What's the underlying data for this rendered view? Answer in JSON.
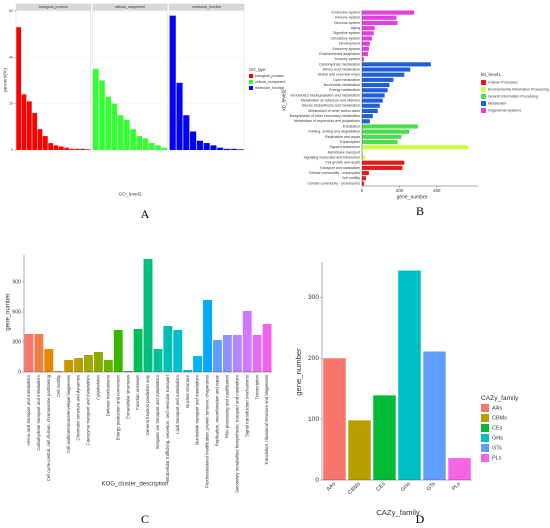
{
  "chart_data": [
    {
      "type": "facet_bar",
      "label": "A",
      "xlabel": "GO_level2",
      "ylabel": "percent(%)",
      "legend_title": "GO_type",
      "ylim": [
        0,
        60
      ],
      "yticks": [
        0,
        20,
        40,
        60
      ],
      "facets": [
        {
          "name": "biological_process",
          "color": "#ff0000",
          "categories": [
            null,
            null,
            null,
            null,
            null,
            null,
            null,
            null,
            null,
            null,
            null,
            null,
            null,
            null
          ],
          "values": [
            53,
            24,
            21,
            16,
            9,
            6,
            3,
            2,
            1.5,
            1,
            0.5,
            0.5,
            0.5,
            0.3
          ]
        },
        {
          "name": "cellular_component",
          "color": "#33ff33",
          "categories": [
            null,
            null,
            null,
            null,
            null,
            null,
            null,
            null,
            null,
            null,
            null,
            null
          ],
          "values": [
            35,
            30,
            23,
            20,
            15,
            13,
            9,
            6,
            5,
            3,
            2,
            1
          ]
        },
        {
          "name": "molecular_function",
          "color": "#0000ff",
          "categories": [
            null,
            null,
            null,
            null,
            null,
            null,
            null,
            null,
            null,
            null,
            null
          ],
          "values": [
            58,
            29,
            15,
            8,
            4,
            3,
            2,
            1,
            0.5,
            0.5,
            0.3
          ]
        }
      ]
    },
    {
      "type": "hbar",
      "label": "B",
      "xlabel": "gene_number",
      "ylabel": "kb_level2",
      "legend_title": "kb_level1",
      "xlim": [
        0,
        620
      ],
      "xticks": [
        0,
        200,
        400
      ],
      "categories": [
        "Endocrine system",
        "Immune system",
        "Nervous system",
        "Aging",
        "Digestive system",
        "Circulatory system",
        "Development",
        "Excretory system",
        "Environmental adaptation",
        "Sensory system",
        "Carbohydrate metabolism",
        "Amino acid metabolism",
        "Global and overview maps",
        "Lipid metabolism",
        "Nucleotide metabolism",
        "Energy metabolism",
        "Xenobiotics biodegradation and metabolism",
        "Metabolism of cofactors and vitamins",
        "Glycan biosynthesis and metabolism",
        "Metabolism of other amino acids",
        "Biosynthesis of other secondary metabolites",
        "Metabolism of terpenoids and polyketides",
        "Translation",
        "Folding, sorting and degradation",
        "Replication and repair",
        "Transcription",
        "Signal transduction",
        "Membrane transport",
        "Signaling molecules and interaction",
        "Cell growth and death",
        "Transport and catabolism",
        "Cellular community - eukaryotes",
        "Cell motility",
        "Cellular community - prokaryotes"
      ],
      "values": [
        279,
        184,
        190,
        68,
        63,
        53,
        42,
        37,
        32,
        11,
        368,
        258,
        226,
        168,
        147,
        137,
        121,
        111,
        95,
        84,
        58,
        42,
        300,
        253,
        211,
        190,
        568,
        5,
        16,
        226,
        216,
        37,
        21,
        11
      ],
      "colors": [
        "#e040e0",
        "#e040e0",
        "#e040e0",
        "#e040e0",
        "#e040e0",
        "#e040e0",
        "#e040e0",
        "#e040e0",
        "#e040e0",
        "#e040e0",
        "#1f5fd8",
        "#1f5fd8",
        "#1f5fd8",
        "#1f5fd8",
        "#1f5fd8",
        "#1f5fd8",
        "#1f5fd8",
        "#1f5fd8",
        "#1f5fd8",
        "#1f5fd8",
        "#1f5fd8",
        "#1f5fd8",
        "#4ddc4d",
        "#4ddc4d",
        "#4ddc4d",
        "#4ddc4d",
        "#c8ff40",
        "#c8ff40",
        "#c8ff40",
        "#e31a1c",
        "#e31a1c",
        "#e31a1c",
        "#e31a1c",
        "#e31a1c"
      ],
      "legend": [
        {
          "name": "Cellular Processes",
          "color": "#e31a1c"
        },
        {
          "name": "Environmental Information Processing",
          "color": "#c8ff40"
        },
        {
          "name": "Genetic Information Processing",
          "color": "#4ddc4d"
        },
        {
          "name": "Metabolism",
          "color": "#1f5fd8"
        },
        {
          "name": "Organismal Systems",
          "color": "#e040e0"
        }
      ]
    },
    {
      "type": "bar",
      "label": "C",
      "xlabel": "KOG_cluster_description",
      "ylabel": "gene_number",
      "ylim": [
        0,
        1170
      ],
      "yticks": [
        0,
        300,
        600,
        900
      ],
      "categories": [
        "Amino acid transport and metabolism",
        "Carbohydrate transport and metabolism",
        "Cell cycle control, cell division, chromosome partitioning",
        "Cell motility",
        "Cell wall/membrane/envelope biogenesis",
        "Chromatin structure and dynamics",
        "Coenzyme transport and metabolism",
        "Cytoskeleton",
        "Defense mechanisms",
        "Energy production and conversion",
        "Extracellular structures",
        "Function unknown",
        "General function prediction only",
        "Inorganic ion transport and metabolism",
        "Intracellular trafficking, secretion, and vesicular transport",
        "Lipid transport and metabolism",
        "Nuclear structure",
        "Nucleotide transport and metabolism",
        "Posttranslational modification, protein turnover, chaperones",
        "Replication, recombination and repair",
        "RNA processing and modification",
        "Secondary metabolites biosynthesis, transport and catabolism",
        "Signal transduction mechanisms",
        "Transcription",
        "Translation, ribosomal structure and biogenesis"
      ],
      "values": [
        380,
        380,
        230,
        10,
        120,
        140,
        170,
        200,
        120,
        420,
        10,
        430,
        1130,
        230,
        460,
        420,
        20,
        160,
        720,
        320,
        370,
        370,
        610,
        370,
        480
      ],
      "colors": [
        "#F8766D",
        "#EF7F49",
        "#E58700",
        "#D89000",
        "#C99800",
        "#B79F00",
        "#A3A500",
        "#8BAB00",
        "#6BB100",
        "#39B600",
        "#00BA38",
        "#00BD5C",
        "#00BF7D",
        "#00C19A",
        "#00C0B5",
        "#00BECC",
        "#00BAE0",
        "#00B4EF",
        "#00A9FF",
        "#619CFF",
        "#8F91FF",
        "#B385FF",
        "#CF78FF",
        "#E36EF6",
        "#F066EA"
      ]
    },
    {
      "type": "bar",
      "label": "D",
      "xlabel": "CAZy_family",
      "ylabel": "gene_number",
      "legend_title": "CAZy_family",
      "ylim": [
        0,
        358
      ],
      "yticks": [
        0,
        100,
        200,
        300
      ],
      "categories": [
        "AAs",
        "CBMs",
        "CEs",
        "GHs",
        "GTs",
        "PLs"
      ],
      "values": [
        200,
        98,
        139,
        344,
        211,
        36
      ],
      "colors": [
        "#F8766D",
        "#B79F00",
        "#00BA38",
        "#00BFC4",
        "#619CFF",
        "#F564E3"
      ],
      "legend": true
    }
  ]
}
